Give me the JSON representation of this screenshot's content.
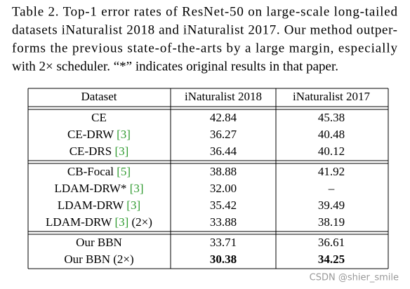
{
  "caption": [
    "Table 2. Top-1 error rates of ResNet-50 on large-scale long-tailed",
    "datasets iNaturalist 2018 and iNaturalist 2017. Our method outper-",
    "forms the previous state-of-the-arts by a large margin, especially",
    "with 2× scheduler. “*” indicates original results in that paper."
  ],
  "table": {
    "header": [
      "Dataset",
      "iNaturalist 2018",
      "iNaturalist 2017"
    ],
    "groups": [
      [
        {
          "method": "CE",
          "values": [
            "42.84",
            "45.38"
          ]
        },
        {
          "method": "CE-DRW",
          "cite": "[3]",
          "values": [
            "36.27",
            "40.48"
          ]
        },
        {
          "method": "CE-DRS",
          "cite": "[3]",
          "values": [
            "36.44",
            "40.12"
          ]
        }
      ],
      [
        {
          "method": "CB-Focal",
          "cite": "[5]",
          "values": [
            "38.88",
            "41.92"
          ]
        },
        {
          "method": "LDAM-DRW*",
          "cite": "[3]",
          "values": [
            "32.00",
            "–"
          ]
        },
        {
          "method": "LDAM-DRW",
          "cite": "[3]",
          "values": [
            "35.42",
            "39.49"
          ]
        },
        {
          "method": "LDAM-DRW",
          "cite": "[3]",
          "suffix": "(2×)",
          "values": [
            "33.88",
            "38.19"
          ]
        }
      ],
      [
        {
          "method": "Our BBN",
          "values": [
            "33.71",
            "36.61"
          ]
        },
        {
          "method": "Our BBN",
          "suffix": "(2×)",
          "values": [
            "30.38",
            "34.25"
          ],
          "bold": true
        }
      ]
    ],
    "cite_color": "#2e9a2e"
  },
  "watermark": "CSDN @shier_smile"
}
